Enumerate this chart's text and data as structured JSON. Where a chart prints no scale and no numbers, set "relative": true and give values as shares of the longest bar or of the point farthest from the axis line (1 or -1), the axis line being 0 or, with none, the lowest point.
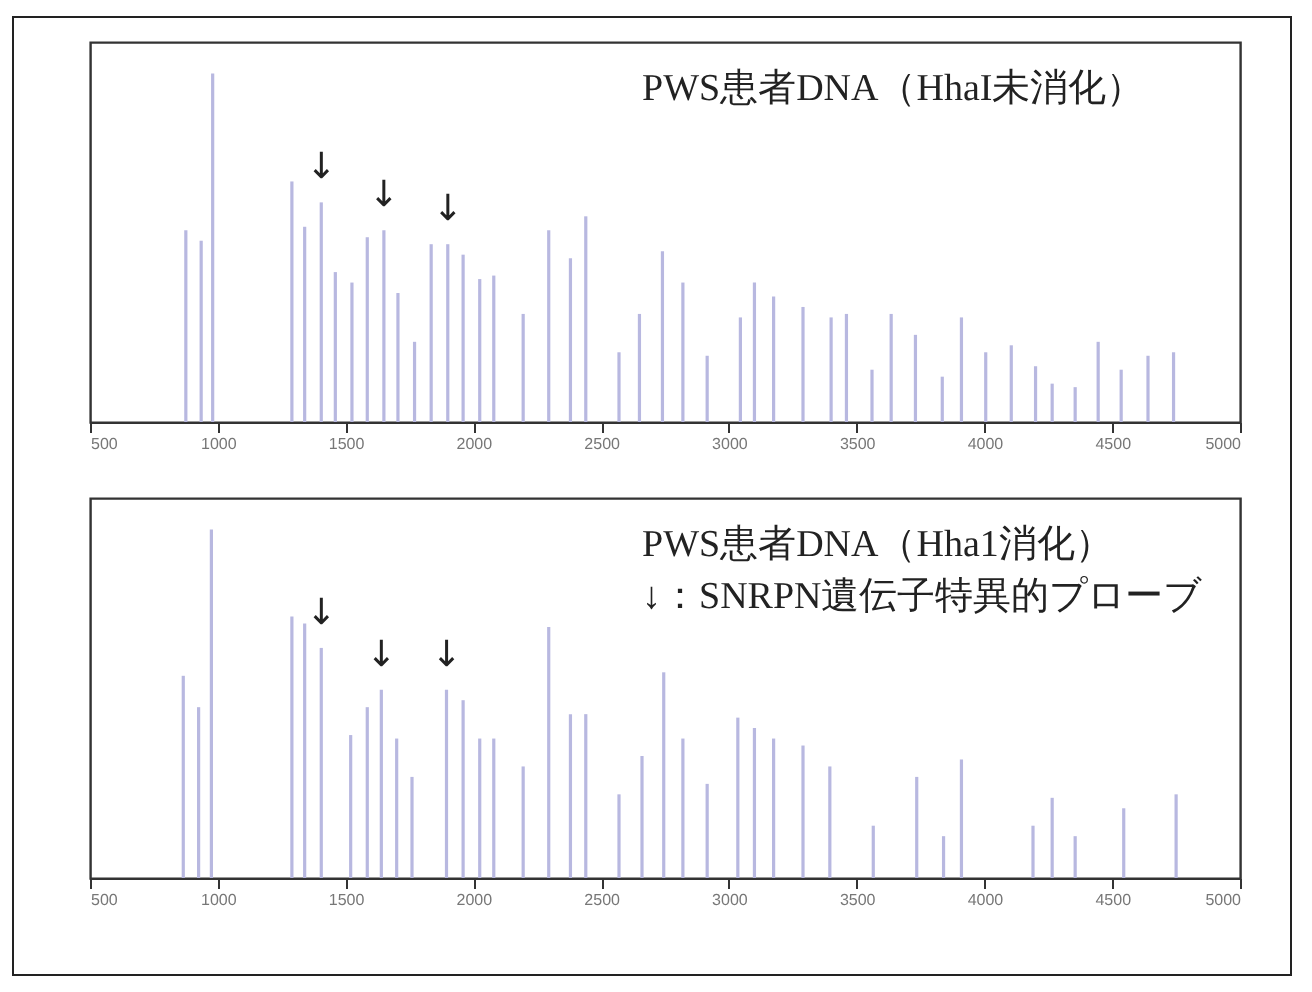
{
  "chart_data": [
    {
      "type": "bar",
      "relative": true,
      "color": "#b8b8e0",
      "xlim": [
        500,
        5000
      ],
      "xticks": [
        500,
        1000,
        1500,
        2000,
        2500,
        3000,
        3500,
        4000,
        4500,
        5000
      ],
      "x": [
        875,
        935,
        980,
        1290,
        1340,
        1405,
        1460,
        1525,
        1585,
        1650,
        1705,
        1770,
        1835,
        1900,
        1960,
        2025,
        2080,
        2195,
        2295,
        2380,
        2440,
        2570,
        2650,
        2740,
        2820,
        2915,
        3045,
        3100,
        3175,
        3290,
        3400,
        3460,
        3560,
        3635,
        3730,
        3835,
        3910,
        4005,
        4105,
        4200,
        4265,
        4355,
        4445,
        4535,
        4640,
        4740
      ],
      "values": [
        0.55,
        0.52,
        1.0,
        0.69,
        0.56,
        0.63,
        0.43,
        0.4,
        0.53,
        0.55,
        0.37,
        0.23,
        0.51,
        0.51,
        0.48,
        0.41,
        0.42,
        0.31,
        0.55,
        0.47,
        0.59,
        0.2,
        0.31,
        0.49,
        0.4,
        0.19,
        0.3,
        0.4,
        0.36,
        0.33,
        0.3,
        0.31,
        0.15,
        0.31,
        0.25,
        0.13,
        0.3,
        0.2,
        0.22,
        0.16,
        0.11,
        0.1,
        0.23,
        0.15,
        0.19,
        0.2
      ],
      "annotations": [
        "PWS患者DNA（HhaI未消化）",
        {
          "text": "↓",
          "x": 1405,
          "y": 0.63
        },
        {
          "text": "↓",
          "x": 1650,
          "y": 0.55
        },
        {
          "text": "↓",
          "x": 1900,
          "y": 0.51
        }
      ]
    },
    {
      "type": "bar",
      "relative": true,
      "color": "#b8b8e0",
      "xlim": [
        500,
        5000
      ],
      "xticks": [
        500,
        1000,
        1500,
        2000,
        2500,
        3000,
        3500,
        4000,
        4500,
        5000
      ],
      "x": [
        865,
        925,
        975,
        1290,
        1340,
        1405,
        1520,
        1585,
        1640,
        1700,
        1760,
        1895,
        1960,
        2025,
        2080,
        2195,
        2295,
        2380,
        2440,
        2570,
        2660,
        2745,
        2820,
        2915,
        3035,
        3100,
        3175,
        3290,
        3395,
        3565,
        3735,
        3840,
        3910,
        4190,
        4265,
        4355,
        4545,
        4750
      ],
      "values": [
        0.58,
        0.49,
        1.0,
        0.75,
        0.73,
        0.66,
        0.41,
        0.49,
        0.54,
        0.4,
        0.29,
        0.54,
        0.51,
        0.4,
        0.4,
        0.32,
        0.72,
        0.47,
        0.47,
        0.24,
        0.35,
        0.59,
        0.4,
        0.27,
        0.46,
        0.43,
        0.4,
        0.38,
        0.32,
        0.15,
        0.29,
        0.12,
        0.34,
        0.15,
        0.23,
        0.12,
        0.2,
        0.24
      ],
      "annotations": [
        "PWS患者DNA（Hha1消化）",
        "↓：SNRPN遺伝子特異的プローブ",
        {
          "text": "↓",
          "x": 1405,
          "y": 0.66
        },
        {
          "text": "↓",
          "x": 1640,
          "y": 0.54
        },
        {
          "text": "↓",
          "x": 1895,
          "y": 0.54
        }
      ]
    }
  ]
}
